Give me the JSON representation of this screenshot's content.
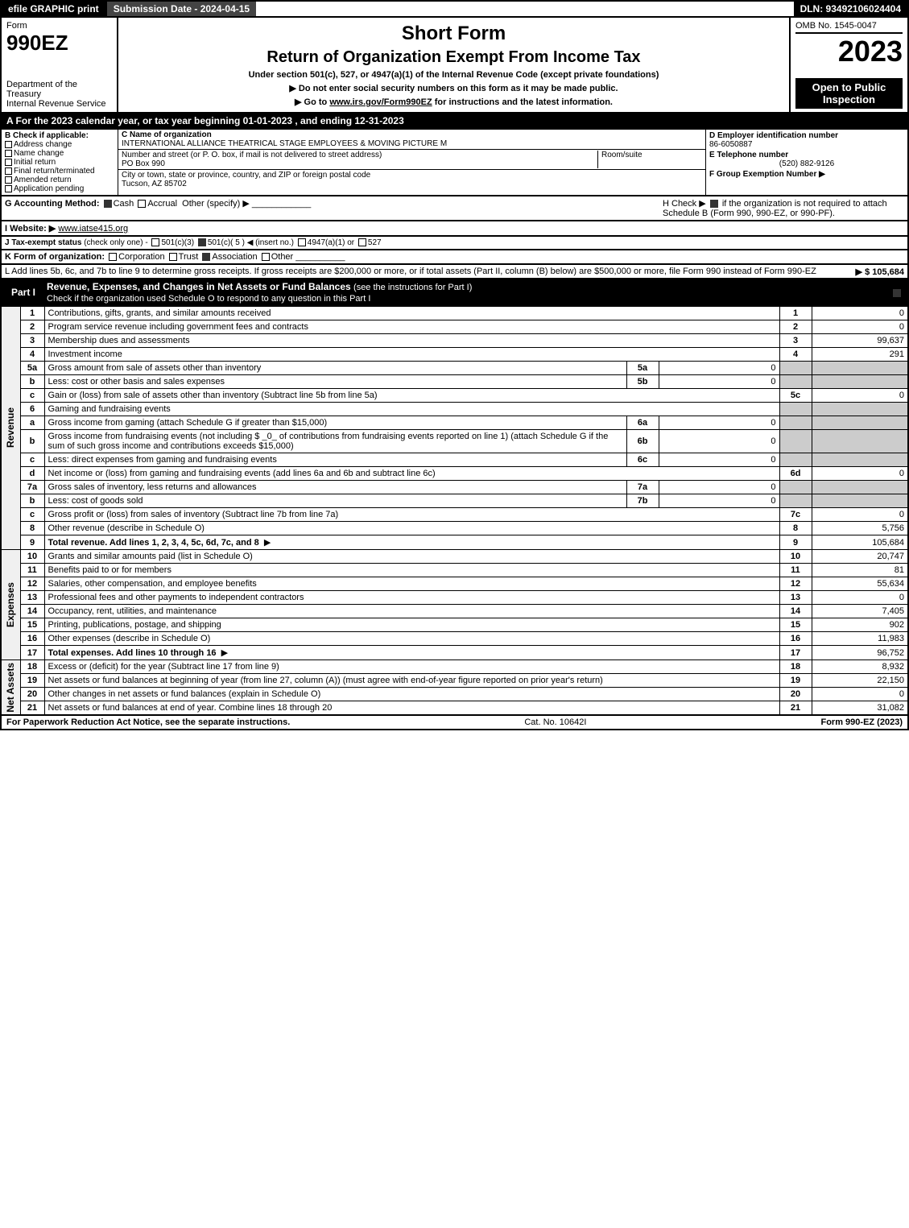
{
  "topbar": {
    "left": "efile GRAPHIC print",
    "mid": "Submission Date - 2024-04-15",
    "right": "DLN: 93492106024404"
  },
  "header": {
    "form_label": "Form",
    "form_no": "990EZ",
    "dept": "Department of the Treasury\nInternal Revenue Service",
    "title1": "Short Form",
    "title2": "Return of Organization Exempt From Income Tax",
    "sub1": "Under section 501(c), 527, or 4947(a)(1) of the Internal Revenue Code (except private foundations)",
    "sub2": "▶ Do not enter social security numbers on this form as it may be made public.",
    "sub3_pre": "▶ Go to ",
    "sub3_link": "www.irs.gov/Form990EZ",
    "sub3_post": " for instructions and the latest information.",
    "omb": "OMB No. 1545-0047",
    "year": "2023",
    "inspect": "Open to Public Inspection"
  },
  "tax_year": "A  For the 2023 calendar year, or tax year beginning 01-01-2023 , and ending 12-31-2023",
  "section_b": {
    "hdr": "B  Check if applicable:",
    "opts": [
      "Address change",
      "Name change",
      "Initial return",
      "Final return/terminated",
      "Amended return",
      "Application pending"
    ]
  },
  "section_c": {
    "name_lbl": "C Name of organization",
    "name": "INTERNATIONAL ALLIANCE THEATRICAL STAGE EMPLOYEES & MOVING PICTURE M",
    "addr_lbl": "Number and street (or P. O. box, if mail is not delivered to street address)",
    "addr": "PO Box 990",
    "room_lbl": "Room/suite",
    "room": "",
    "city_lbl": "City or town, state or province, country, and ZIP or foreign postal code",
    "city": "Tucson, AZ  85702"
  },
  "section_d": {
    "ein_lbl": "D Employer identification number",
    "ein": "86-6050887",
    "tel_lbl": "E Telephone number",
    "tel": "(520) 882-9126",
    "grp_lbl": "F Group Exemption Number   ▶",
    "grp": ""
  },
  "section_g": {
    "lbl": "G Accounting Method:",
    "cash": "Cash",
    "accrual": "Accrual",
    "other": "Other (specify) ▶"
  },
  "section_h": {
    "text1": "H  Check ▶ ",
    "text2": " if the organization is not required to attach Schedule B (Form 990, 990-EZ, or 990-PF)."
  },
  "section_i": {
    "lbl": "I Website: ▶",
    "val": "www.iatse415.org"
  },
  "section_j": {
    "lbl": "J Tax-exempt status",
    "sub": "(check only one) -",
    "opt1": "501(c)(3)",
    "opt2": "501(c)( 5 ) ◀ (insert no.)",
    "opt3": "4947(a)(1) or",
    "opt4": "527"
  },
  "section_k": {
    "lbl": "K Form of organization:",
    "opts": [
      "Corporation",
      "Trust",
      "Association",
      "Other"
    ]
  },
  "section_l": {
    "text": "L Add lines 5b, 6c, and 7b to line 9 to determine gross receipts. If gross receipts are $200,000 or more, or if total assets (Part II, column (B) below) are $500,000 or more, file Form 990 instead of Form 990-EZ",
    "amt": "▶ $ 105,684"
  },
  "part1": {
    "lbl": "Part I",
    "title": "Revenue, Expenses, and Changes in Net Assets or Fund Balances",
    "sub": "(see the instructions for Part I)",
    "check": "Check if the organization used Schedule O to respond to any question in this Part I"
  },
  "sidelabels": {
    "rev": "Revenue",
    "exp": "Expenses",
    "na": "Net Assets"
  },
  "lines": [
    {
      "n": "1",
      "d": "Contributions, gifts, grants, and similar amounts received",
      "ref": "1",
      "amt": "0"
    },
    {
      "n": "2",
      "d": "Program service revenue including government fees and contracts",
      "ref": "2",
      "amt": "0"
    },
    {
      "n": "3",
      "d": "Membership dues and assessments",
      "ref": "3",
      "amt": "99,637"
    },
    {
      "n": "4",
      "d": "Investment income",
      "ref": "4",
      "amt": "291"
    },
    {
      "n": "5a",
      "d": "Gross amount from sale of assets other than inventory",
      "sub": "5a",
      "subval": "0"
    },
    {
      "n": "b",
      "d": "Less: cost or other basis and sales expenses",
      "sub": "5b",
      "subval": "0"
    },
    {
      "n": "c",
      "d": "Gain or (loss) from sale of assets other than inventory (Subtract line 5b from line 5a)",
      "ref": "5c",
      "amt": "0"
    },
    {
      "n": "6",
      "d": "Gaming and fundraising events"
    },
    {
      "n": "a",
      "d": "Gross income from gaming (attach Schedule G if greater than $15,000)",
      "sub": "6a",
      "subval": "0"
    },
    {
      "n": "b",
      "d": "Gross income from fundraising events (not including $ _0_ of contributions from fundraising events reported on line 1) (attach Schedule G if the sum of such gross income and contributions exceeds $15,000)",
      "sub": "6b",
      "subval": "0"
    },
    {
      "n": "c",
      "d": "Less: direct expenses from gaming and fundraising events",
      "sub": "6c",
      "subval": "0"
    },
    {
      "n": "d",
      "d": "Net income or (loss) from gaming and fundraising events (add lines 6a and 6b and subtract line 6c)",
      "ref": "6d",
      "amt": "0"
    },
    {
      "n": "7a",
      "d": "Gross sales of inventory, less returns and allowances",
      "sub": "7a",
      "subval": "0"
    },
    {
      "n": "b",
      "d": "Less: cost of goods sold",
      "sub": "7b",
      "subval": "0"
    },
    {
      "n": "c",
      "d": "Gross profit or (loss) from sales of inventory (Subtract line 7b from line 7a)",
      "ref": "7c",
      "amt": "0"
    },
    {
      "n": "8",
      "d": "Other revenue (describe in Schedule O)",
      "ref": "8",
      "amt": "5,756"
    },
    {
      "n": "9",
      "d": "Total revenue. Add lines 1, 2, 3, 4, 5c, 6d, 7c, and 8",
      "ref": "9",
      "amt": "105,684",
      "bold": true,
      "arrow": true
    },
    {
      "n": "10",
      "d": "Grants and similar amounts paid (list in Schedule O)",
      "ref": "10",
      "amt": "20,747"
    },
    {
      "n": "11",
      "d": "Benefits paid to or for members",
      "ref": "11",
      "amt": "81"
    },
    {
      "n": "12",
      "d": "Salaries, other compensation, and employee benefits",
      "ref": "12",
      "amt": "55,634"
    },
    {
      "n": "13",
      "d": "Professional fees and other payments to independent contractors",
      "ref": "13",
      "amt": "0"
    },
    {
      "n": "14",
      "d": "Occupancy, rent, utilities, and maintenance",
      "ref": "14",
      "amt": "7,405"
    },
    {
      "n": "15",
      "d": "Printing, publications, postage, and shipping",
      "ref": "15",
      "amt": "902"
    },
    {
      "n": "16",
      "d": "Other expenses (describe in Schedule O)",
      "ref": "16",
      "amt": "11,983"
    },
    {
      "n": "17",
      "d": "Total expenses. Add lines 10 through 16",
      "ref": "17",
      "amt": "96,752",
      "bold": true,
      "arrow": true
    },
    {
      "n": "18",
      "d": "Excess or (deficit) for the year (Subtract line 17 from line 9)",
      "ref": "18",
      "amt": "8,932"
    },
    {
      "n": "19",
      "d": "Net assets or fund balances at beginning of year (from line 27, column (A)) (must agree with end-of-year figure reported on prior year's return)",
      "ref": "19",
      "amt": "22,150"
    },
    {
      "n": "20",
      "d": "Other changes in net assets or fund balances (explain in Schedule O)",
      "ref": "20",
      "amt": "0"
    },
    {
      "n": "21",
      "d": "Net assets or fund balances at end of year. Combine lines 18 through 20",
      "ref": "21",
      "amt": "31,082"
    }
  ],
  "footer": {
    "left": "For Paperwork Reduction Act Notice, see the separate instructions.",
    "mid": "Cat. No. 10642I",
    "right_pre": "Form ",
    "right_form": "990-EZ",
    "right_post": " (2023)"
  }
}
